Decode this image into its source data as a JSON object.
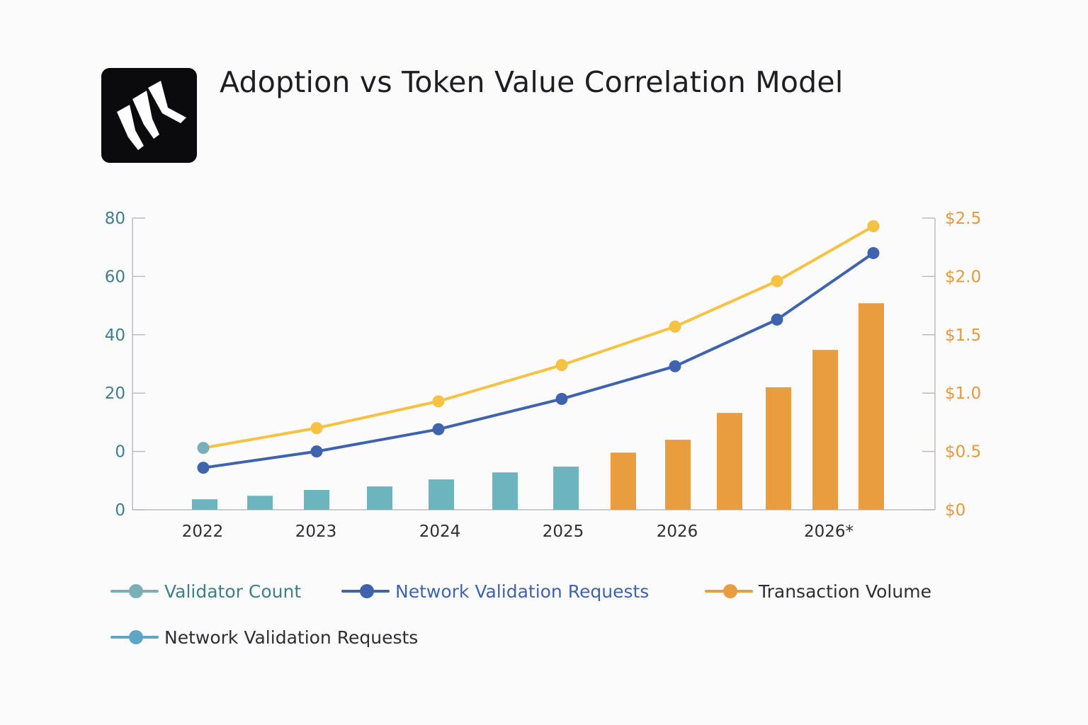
{
  "title": "Adoption vs Token Value Correlation Model",
  "colors": {
    "validator": "#79b0b8",
    "requests": "#3f63ad",
    "volume": "#e99d3e",
    "token_line": "#f6c244",
    "teal_bar": "#6cb4be",
    "axis": "#b9bcc2",
    "left_text": "#3e7f8c",
    "right_text": "#e69a3a"
  },
  "legend": [
    {
      "label": "Validator Count",
      "color": "#79b0b8",
      "text_color": "#3e7f8c"
    },
    {
      "label": "Network Validation Requests",
      "color": "#3f63ad",
      "text_color": "#3f63ad"
    },
    {
      "label": "Transaction Volume",
      "color": "#e99d3e",
      "text_color": "#2e2e33"
    },
    {
      "label": "Network Validation Requests",
      "color": "#5fa6c6",
      "text_color": "#2e2e33"
    }
  ],
  "chart_data": {
    "type": "bar+line",
    "left_axis_ticks": [
      "80",
      "60",
      "40",
      "20",
      "0",
      "0"
    ],
    "right_axis_ticks": [
      "$2.5",
      "$2.0",
      "$1.5",
      "$1.0",
      "$0.5",
      "$0"
    ],
    "right_axis_values": [
      2.5,
      2.0,
      1.5,
      1.0,
      0.5,
      0
    ],
    "right_ylim": [
      0,
      2.5
    ],
    "x_tick_labels": [
      "2022",
      "2023",
      "2024",
      "2025",
      "2026",
      "2026*"
    ],
    "bars": {
      "values": [
        0.09,
        0.12,
        0.17,
        0.2,
        0.26,
        0.32,
        0.37,
        0.49,
        0.6,
        0.83,
        1.05,
        1.37,
        1.77
      ],
      "colors": [
        "#6cb4be",
        "#6cb4be",
        "#6cb4be",
        "#6cb4be",
        "#6cb4be",
        "#6cb4be",
        "#6cb4be",
        "#e99d3e",
        "#e99d3e",
        "#e99d3e",
        "#e99d3e",
        "#e99d3e",
        "#e99d3e"
      ]
    },
    "series": [
      {
        "name": "Validator Count",
        "color": "#f6c244",
        "point_index": [
          0,
          2,
          4,
          6,
          8,
          10,
          12
        ],
        "values": [
          0.53,
          0.7,
          0.93,
          1.24,
          1.57,
          1.96,
          2.43
        ],
        "first_point_color": "#79b0b8"
      },
      {
        "name": "Network Validation Requests",
        "color": "#3f63ad",
        "point_index": [
          0,
          2,
          4,
          6,
          8,
          10,
          12
        ],
        "values": [
          0.36,
          0.5,
          0.69,
          0.95,
          1.23,
          1.63,
          2.2
        ]
      }
    ]
  }
}
